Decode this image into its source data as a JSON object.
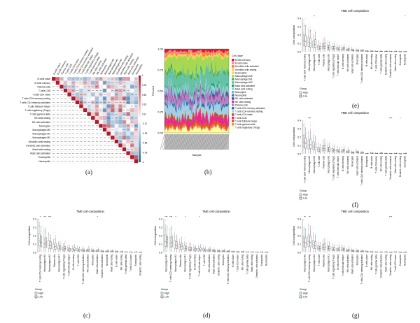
{
  "figure": {
    "panel_labels": [
      "(a)",
      "(b)",
      "(c)",
      "(d)",
      "(e)",
      "(f)",
      "(g)"
    ]
  },
  "chart_data": [
    {
      "panel": "(a)",
      "type": "heatmap",
      "cell_types": [
        "B cells naive",
        "B cells memory",
        "Plasma cells",
        "T cells CD8",
        "T cells CD4 naive",
        "T cells CD4 memory resting",
        "T cells CD4 memory activated",
        "T cells follicular helper",
        "T cells regulatory (Tregs)",
        "T cells gamma delta",
        "NK cells resting",
        "NK cells activated",
        "Monocytes",
        "Macrophages M0",
        "Macrophages M1",
        "Macrophages M2",
        "Dendritic cells resting",
        "Dendritic cells activated",
        "Mast cells resting",
        "Mast cells activated",
        "Eosinophils",
        "Neutrophils"
      ],
      "colorbar_ticks": [
        "1",
        "0.78",
        "0.55",
        "0.33",
        "0.11",
        "-0.11",
        "-0.33",
        "-0.55",
        "-0.78",
        "-1"
      ],
      "cell_text": "***",
      "colors": {
        "positive": "#b2182b",
        "negative": "#2166ac"
      }
    },
    {
      "panel": "(b)",
      "type": "area",
      "title": "",
      "ylabel": "Percent",
      "xlabel": "Sample",
      "y_ticks": [
        "1.00",
        "0.75",
        "0.50",
        "0.25",
        "0.00"
      ],
      "legend_title": "Cell_type",
      "legend": [
        "B cells memory",
        "B cells naive",
        "Dendritic cells activated",
        "Dendritic cells resting",
        "Eosinophils",
        "Macrophages M0",
        "Macrophages M1",
        "Macrophages M2",
        "Mast cells activated",
        "Mast cells resting",
        "Monocytes",
        "Neutrophils",
        "NK cells activated",
        "NK cells resting",
        "Plasma cells",
        "T cells CD4 memory activated",
        "T cells CD4 memory resting",
        "T cells CD4 naive",
        "T cells CD8",
        "T cells follicular helper",
        "T cells gamma delta",
        "T cells regulatory (Tregs)"
      ],
      "legend_colors": [
        "#e41a1c",
        "#f781bf",
        "#ff7f00",
        "#fdbf6f",
        "#ffd92f",
        "#a6d854",
        "#4daf4a",
        "#66c2a5",
        "#1b9e77",
        "#8dd3c7",
        "#80b1d3",
        "#377eb8",
        "#6a3d9a",
        "#984ea3",
        "#bc80bd",
        "#1f78b4",
        "#a6cee3",
        "#b15928",
        "#e7298a",
        "#d95f02",
        "#fb8072",
        "#ffff99"
      ],
      "composition": [
        0.03,
        0.02,
        0.02,
        0.02,
        0.01,
        0.16,
        0.04,
        0.14,
        0.02,
        0.03,
        0.03,
        0.01,
        0.02,
        0.03,
        0.06,
        0.03,
        0.12,
        0.03,
        0.08,
        0.03,
        0.02,
        0.05
      ]
    },
    {
      "panel": "(c)",
      "type": "box",
      "title": "TME cell composition",
      "ylabel": "Cell composition",
      "y_ticks": [
        "0.4",
        "0.3",
        "0.2",
        "0.1",
        "0.0"
      ],
      "ylim": [
        0,
        0.4
      ],
      "categories": [
        "T cells CD4 memory resting",
        "Macrophages M0",
        "Macrophages M2",
        "Plasma cells",
        "Macrophages M1",
        "T cells regulatory (Tregs)",
        "T cells follicular helper",
        "B cells memory",
        "T cells CD8",
        "T cells CD4 memory activated",
        "NK cells activated",
        "Monocytes",
        "Mast cells activated",
        "Dendritic cells activated",
        "Neutrophils",
        "Mast cells resting",
        "B cells naive",
        "NK cells resting",
        "T cells gamma delta",
        "T cells CD4 naive",
        "Eosinophils",
        "Dendritic cells resting"
      ],
      "medians_high": [
        0.14,
        0.1,
        0.09,
        0.06,
        0.05,
        0.04,
        0.035,
        0.03,
        0.03,
        0.025,
        0.02,
        0.02,
        0.015,
        0.012,
        0.01,
        0.01,
        0.008,
        0.005,
        0.004,
        0.003,
        0.002,
        0.002
      ],
      "medians_low": [
        0.12,
        0.11,
        0.08,
        0.07,
        0.05,
        0.045,
        0.03,
        0.035,
        0.025,
        0.02,
        0.025,
        0.015,
        0.02,
        0.01,
        0.012,
        0.012,
        0.006,
        0.006,
        0.003,
        0.002,
        0.003,
        0.001
      ],
      "significance": [
        "*",
        "***",
        "***",
        "",
        "",
        "",
        "",
        "",
        "",
        "",
        "",
        "",
        "*",
        "",
        "",
        "",
        "",
        "",
        "",
        "",
        "",
        ""
      ],
      "legend_title": "Group",
      "legend": [
        "High",
        "Low"
      ],
      "colors": [
        "#3b7f78",
        "#6b2a3a"
      ]
    },
    {
      "panel": "(d)",
      "type": "box",
      "title": "TME cell composition",
      "ylabel": "Cell composition",
      "y_ticks": [
        "0.4",
        "0.3",
        "0.2",
        "0.1",
        "0.0"
      ],
      "ylim": [
        0,
        0.4
      ],
      "categories": [
        "Macrophages M0",
        "T cells CD4 memory resting",
        "Macrophages M2",
        "Plasma cells",
        "Macrophages M1",
        "T cells regulatory (Tregs)",
        "B cells memory",
        "T cells follicular helper",
        "T cells CD8",
        "NK cells activated",
        "Mast cells activated",
        "Dendritic cells resting",
        "Monocytes",
        "T cells CD4 memory activated",
        "B cells naive",
        "T cells CD4 naive",
        "NK cells resting",
        "T cells gamma delta",
        "Mast cells resting",
        "Dendritic cells activated",
        "Eosinophils",
        "Neutrophils"
      ],
      "medians_high": [
        0.13,
        0.11,
        0.09,
        0.06,
        0.05,
        0.04,
        0.035,
        0.03,
        0.03,
        0.02,
        0.02,
        0.015,
        0.012,
        0.01,
        0.008,
        0.006,
        0.005,
        0.004,
        0.003,
        0.003,
        0.002,
        0.002
      ],
      "medians_low": [
        0.12,
        0.12,
        0.08,
        0.07,
        0.045,
        0.04,
        0.03,
        0.035,
        0.025,
        0.025,
        0.015,
        0.012,
        0.015,
        0.012,
        0.006,
        0.005,
        0.006,
        0.003,
        0.004,
        0.002,
        0.003,
        0.001
      ],
      "significance": [
        "***",
        "***",
        "*",
        "",
        "*",
        "",
        "",
        "*",
        "",
        "",
        "",
        "",
        "",
        "",
        "",
        "",
        "",
        "",
        "",
        "",
        "",
        ""
      ],
      "legend_title": "Group",
      "legend": [
        "High",
        "Low"
      ],
      "colors": [
        "#3b7f78",
        "#6b2a3a"
      ]
    },
    {
      "panel": "(e)",
      "type": "box",
      "title": "TME cell composition",
      "ylabel": "Cell composition",
      "y_ticks": [
        "0.4",
        "0.3",
        "0.2",
        "0.1",
        "0.0"
      ],
      "ylim": [
        0,
        0.4
      ],
      "categories": [
        "T cells CD4 memory resting",
        "Macrophages M0",
        "Macrophages M2",
        "T cells CD8",
        "Plasma cells",
        "Macrophages M1",
        "T cells regulatory (Tregs)",
        "T cells follicular helper",
        "B cells memory",
        "NK cells activated",
        "Mast cells activated",
        "Monocytes",
        "T cells CD4 memory activated",
        "B cells naive",
        "NK cells resting",
        "T cells CD4 naive",
        "T cells gamma delta",
        "Dendritic cells resting",
        "Dendritic cells activated",
        "Mast cells resting",
        "Eosinophils",
        "Neutrophils"
      ],
      "medians_high": [
        0.13,
        0.11,
        0.08,
        0.05,
        0.06,
        0.05,
        0.04,
        0.035,
        0.03,
        0.02,
        0.02,
        0.015,
        0.01,
        0.008,
        0.006,
        0.005,
        0.004,
        0.003,
        0.003,
        0.002,
        0.002,
        0.001
      ],
      "medians_low": [
        0.12,
        0.1,
        0.09,
        0.04,
        0.065,
        0.045,
        0.04,
        0.03,
        0.035,
        0.025,
        0.015,
        0.012,
        0.012,
        0.006,
        0.005,
        0.004,
        0.003,
        0.004,
        0.002,
        0.003,
        0.001,
        0.002
      ],
      "significance": [
        "",
        "",
        "*",
        "",
        "",
        "",
        "",
        "",
        "",
        "",
        "",
        "",
        "",
        "",
        "",
        "",
        "",
        "",
        "",
        "",
        "",
        "*"
      ],
      "legend_title": "Group",
      "legend": [
        "High",
        "Low"
      ],
      "colors": [
        "#3b7f78",
        "#6b2a3a"
      ]
    },
    {
      "panel": "(f)",
      "type": "box",
      "title": "TME cell composition",
      "ylabel": "Cell composition",
      "y_ticks": [
        "0.4",
        "0.3",
        "0.2",
        "0.1",
        "0.0"
      ],
      "ylim": [
        0,
        0.4
      ],
      "categories": [
        "T cells CD4 memory resting",
        "Macrophages M0",
        "Macrophages M2",
        "T cells CD8",
        "Plasma cells",
        "Macrophages M1",
        "T cells regulatory (Tregs)",
        "T cells follicular helper",
        "B cells memory",
        "NK cells activated",
        "Monocytes",
        "Mast cells activated",
        "T cells CD4 memory activated",
        "Neutrophils",
        "B cells naive",
        "T cells CD4 naive",
        "NK cells resting",
        "T cells gamma delta",
        "Dendritic cells activated",
        "Mast cells resting",
        "Dendritic cells resting",
        "Eosinophils"
      ],
      "medians_high": [
        0.14,
        0.1,
        0.09,
        0.05,
        0.06,
        0.05,
        0.04,
        0.035,
        0.03,
        0.02,
        0.015,
        0.02,
        0.01,
        0.002,
        0.008,
        0.005,
        0.005,
        0.004,
        0.003,
        0.003,
        0.002,
        0.002
      ],
      "medians_low": [
        0.12,
        0.11,
        0.08,
        0.045,
        0.065,
        0.05,
        0.035,
        0.03,
        0.035,
        0.025,
        0.012,
        0.015,
        0.012,
        0.003,
        0.006,
        0.004,
        0.006,
        0.003,
        0.002,
        0.004,
        0.001,
        0.003
      ],
      "significance": [
        "",
        "***",
        "",
        "",
        "",
        "",
        "",
        "",
        "",
        "",
        "",
        "",
        "",
        "",
        "",
        "",
        "",
        "",
        "***",
        "",
        "*",
        ""
      ],
      "legend_title": "Group",
      "legend": [
        "High",
        "Low"
      ],
      "colors": [
        "#3b7f78",
        "#6b2a3a"
      ]
    },
    {
      "panel": "(g)",
      "type": "box",
      "title": "TME cell composition",
      "ylabel": "Cell composition",
      "y_ticks": [
        "0.4",
        "0.3",
        "0.2",
        "0.1",
        "0.0"
      ],
      "ylim": [
        0,
        0.4
      ],
      "categories": [
        "Macrophages M0",
        "T cells CD4 memory resting",
        "Macrophages M2",
        "T cells CD8",
        "Plasma cells",
        "Macrophages M1",
        "T cells regulatory (Tregs)",
        "B cells memory",
        "T cells follicular helper",
        "NK cells activated",
        "Mast cells activated",
        "Monocytes",
        "T cells CD4 memory activated",
        "B cells naive",
        "NK cells resting",
        "T cells gamma delta",
        "Dendritic cells activated",
        "Mast cells resting",
        "Dendritic cells resting",
        "T cells CD4 naive",
        "Eosinophils",
        "Neutrophils"
      ],
      "medians_high": [
        0.12,
        0.13,
        0.09,
        0.05,
        0.06,
        0.05,
        0.04,
        0.03,
        0.035,
        0.02,
        0.02,
        0.015,
        0.01,
        0.008,
        0.006,
        0.004,
        0.003,
        0.003,
        0.002,
        0.004,
        0.002,
        0.001
      ],
      "medians_low": [
        0.11,
        0.12,
        0.08,
        0.045,
        0.065,
        0.045,
        0.035,
        0.035,
        0.03,
        0.025,
        0.015,
        0.012,
        0.012,
        0.006,
        0.005,
        0.003,
        0.002,
        0.004,
        0.001,
        0.003,
        0.001,
        0.002
      ],
      "significance": [
        "**",
        "**",
        "",
        "",
        "",
        "",
        "",
        "",
        "",
        "",
        "",
        "",
        "",
        "",
        "",
        "",
        "",
        "",
        "***",
        "",
        "",
        ""
      ],
      "legend_title": "Group",
      "legend": [
        "High",
        "Low"
      ],
      "colors": [
        "#3b7f78",
        "#6b2a3a"
      ]
    }
  ]
}
